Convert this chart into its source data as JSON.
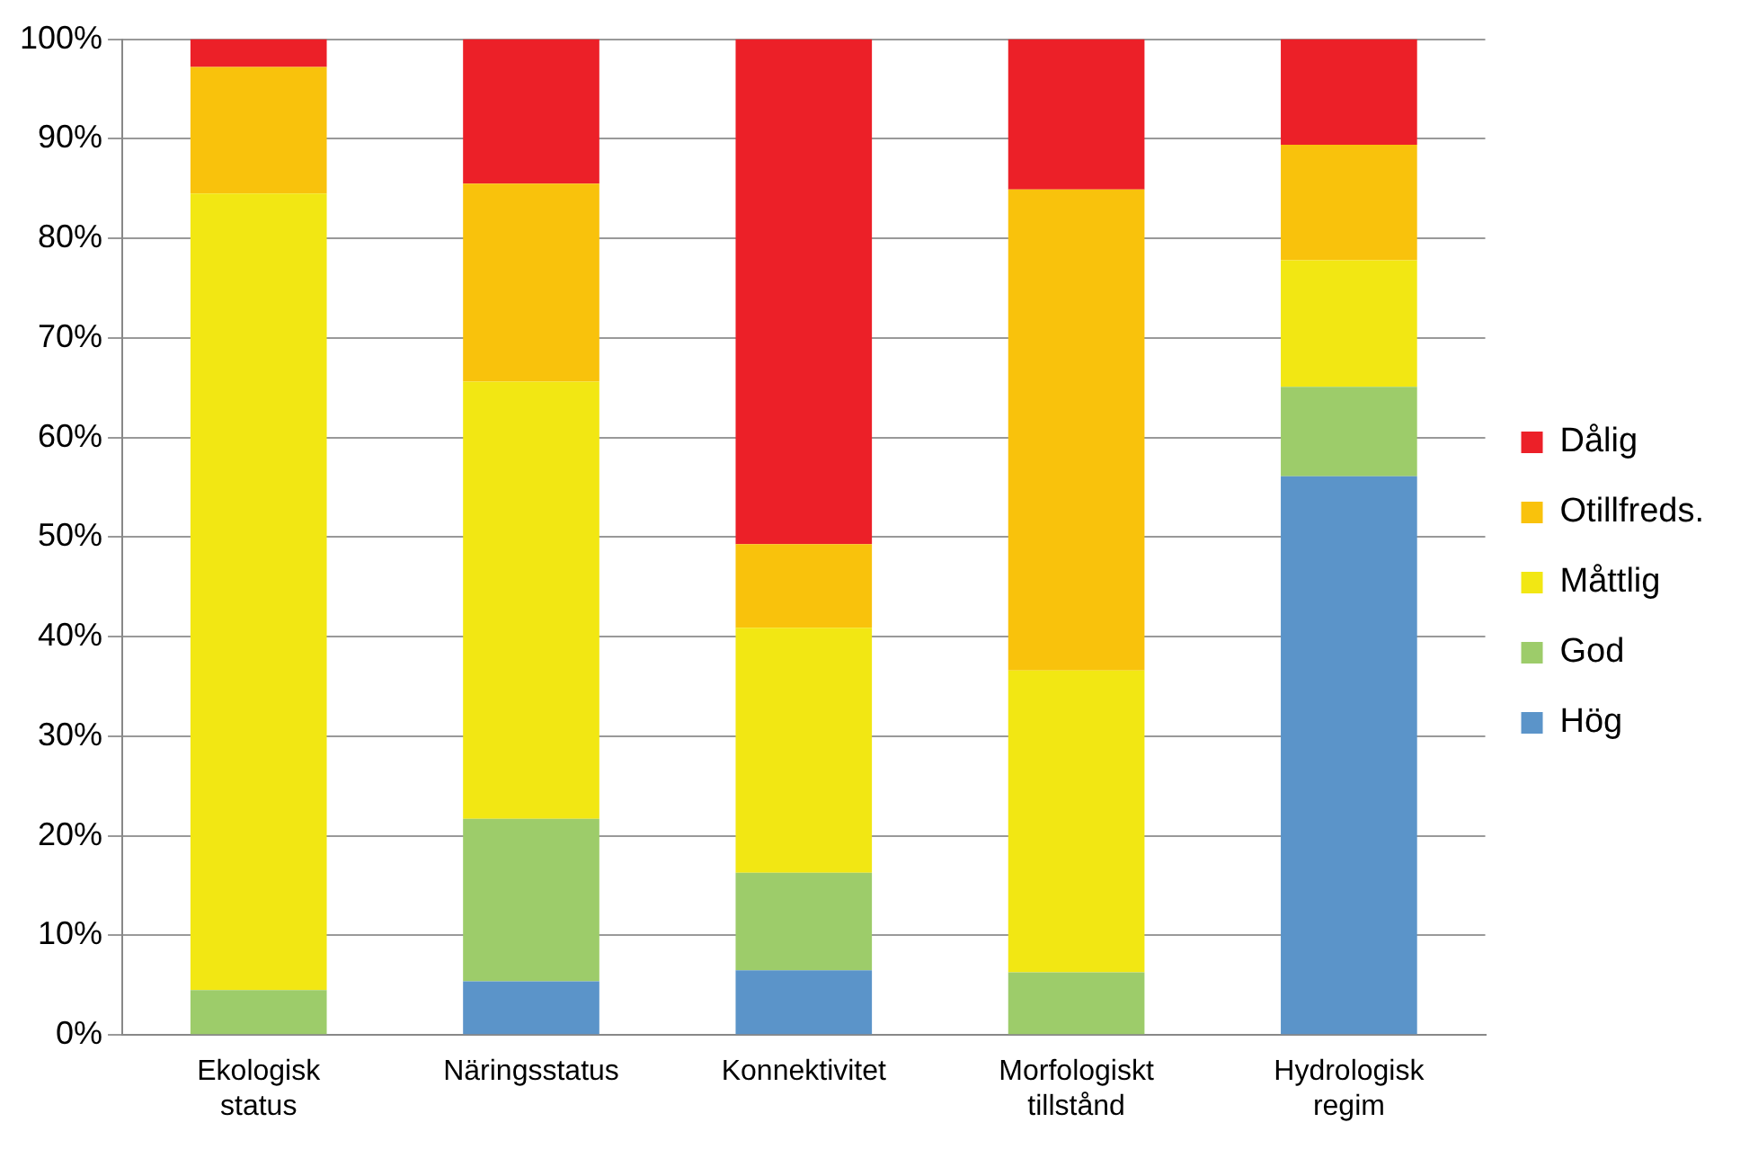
{
  "chart_data": {
    "type": "bar",
    "stacked": true,
    "categories": [
      "Ekologisk status",
      "Näringsstatus",
      "Konnektivitet",
      "Morfologiskt tillstånd",
      "Hydrologisk regim"
    ],
    "series": [
      {
        "name": "Hög",
        "color": "#5b94c9",
        "values": [
          0,
          5.4,
          6.5,
          0,
          56.1
        ]
      },
      {
        "name": "God",
        "color": "#9dcc6a",
        "values": [
          4.5,
          16.3,
          9.8,
          6.3,
          9.0
        ]
      },
      {
        "name": "Måttlig",
        "color": "#f2e713",
        "values": [
          80,
          43.9,
          24.6,
          30.3,
          12.7
        ]
      },
      {
        "name": "Otillfreds.",
        "color": "#f9c20c",
        "values": [
          12.7,
          19.9,
          8.4,
          48.3,
          11.6
        ]
      },
      {
        "name": "Dålig",
        "color": "#ec2028",
        "values": [
          2.8,
          14.5,
          50.7,
          15.1,
          10.6
        ]
      }
    ],
    "ylim": [
      0,
      100
    ],
    "yticks": [
      {
        "value": 0,
        "label": "0%"
      },
      {
        "value": 10,
        "label": "10%"
      },
      {
        "value": 20,
        "label": "20%"
      },
      {
        "value": 30,
        "label": "30%"
      },
      {
        "value": 40,
        "label": "40%"
      },
      {
        "value": 50,
        "label": "50%"
      },
      {
        "value": 60,
        "label": "60%"
      },
      {
        "value": 70,
        "label": "70%"
      },
      {
        "value": 80,
        "label": "80%"
      },
      {
        "value": 90,
        "label": "90%"
      },
      {
        "value": 100,
        "label": "100%"
      }
    ],
    "grid": "y",
    "legend": "right"
  }
}
